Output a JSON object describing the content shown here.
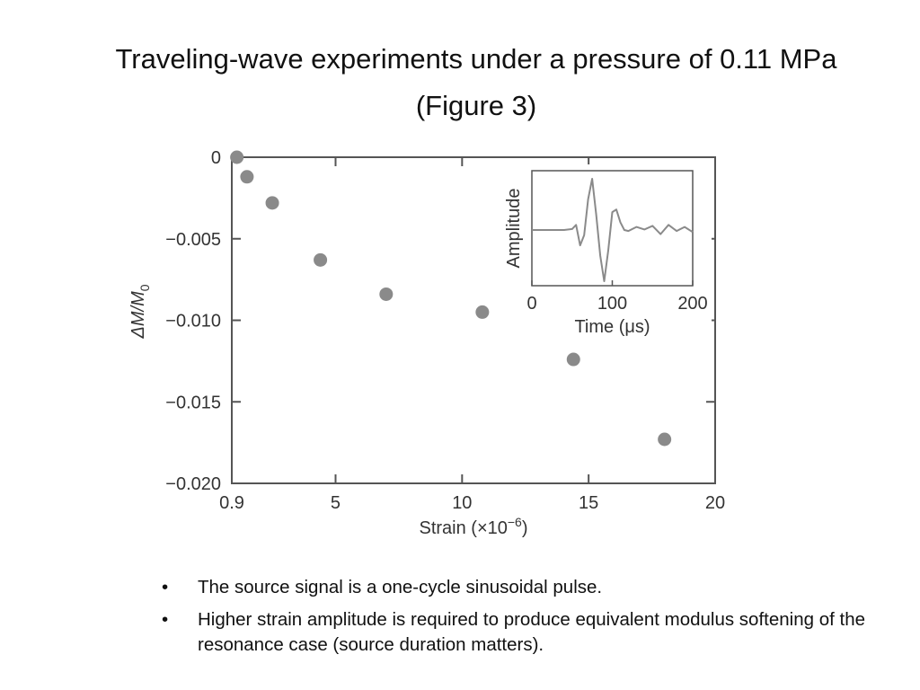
{
  "slide": {
    "title_line1": "Traveling-wave experiments under a pressure of 0.11 MPa",
    "title_line2": "(Figure 3)",
    "bullets": [
      "The source signal is a one-cycle sinusoidal pulse.",
      "Higher strain amplitude is required to produce equivalent modulus softening of the resonance case (source duration matters)."
    ],
    "bullet_glyph": "•"
  },
  "chart_data": [
    {
      "type": "scatter",
      "title": "",
      "xlabel": "Strain (×10",
      "xlabel_exp": "−6",
      "xlabel_end": ")",
      "ylabel": "ΔM/M",
      "ylabel_sub": "0",
      "xlim": [
        0.9,
        20
      ],
      "ylim": [
        -0.02,
        0
      ],
      "xticks": [
        0.9,
        5,
        10,
        15,
        20
      ],
      "xtick_labels": [
        "0.9",
        "5",
        "10",
        "15",
        "20"
      ],
      "yticks": [
        0,
        -0.005,
        -0.01,
        -0.015,
        -0.02
      ],
      "ytick_labels": [
        "0",
        "−0.005",
        "−0.010",
        "−0.015",
        "−0.020"
      ],
      "grid": false,
      "marker_color": "#8a8a8a",
      "series": [
        {
          "x": [
            1.1,
            1.5,
            2.5,
            4.4,
            7.0,
            10.8,
            14.4,
            18.0
          ],
          "y": [
            0.0,
            -0.0012,
            -0.0028,
            -0.0063,
            -0.0084,
            -0.0095,
            -0.0124,
            -0.0173
          ]
        }
      ]
    },
    {
      "type": "line",
      "title": "",
      "xlabel": "Time (μs)",
      "ylabel": "Amplitude",
      "xlim": [
        0,
        200
      ],
      "xticks": [
        0,
        100,
        200
      ],
      "xtick_labels": [
        "0",
        "100",
        "200"
      ],
      "line_color": "#8a8a8a",
      "series": [
        {
          "x": [
            0,
            40,
            50,
            55,
            60,
            65,
            70,
            75,
            80,
            85,
            90,
            95,
            100,
            105,
            110,
            115,
            120,
            130,
            140,
            150,
            160,
            170,
            180,
            190,
            200
          ],
          "y": [
            0,
            0,
            0.02,
            0.1,
            -0.3,
            -0.1,
            0.6,
            1.0,
            0.3,
            -0.5,
            -1.0,
            -0.4,
            0.35,
            0.4,
            0.15,
            0.0,
            -0.02,
            0.06,
            0.01,
            0.08,
            -0.08,
            0.1,
            -0.02,
            0.06,
            -0.04
          ]
        }
      ]
    }
  ]
}
